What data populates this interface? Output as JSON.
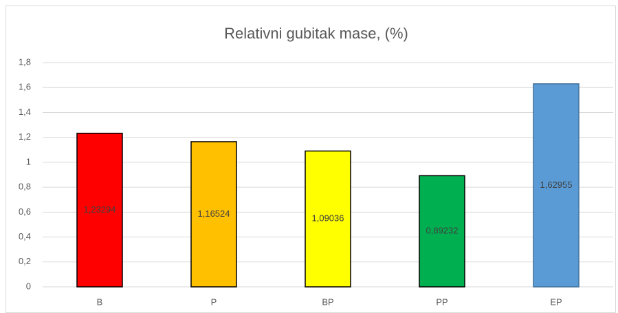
{
  "chart_data": {
    "type": "bar",
    "title": "Relativni gubitak mase, (%)",
    "categories": [
      "B",
      "P",
      "BP",
      "PP",
      "EP"
    ],
    "values": [
      1.23294,
      1.16524,
      1.09036,
      0.89232,
      1.62955
    ],
    "value_labels": [
      "1,23294",
      "1,16524",
      "1,09036",
      "0,89232",
      "1,62955"
    ],
    "colors": [
      "#ff0000",
      "#ffc000",
      "#ffff00",
      "#00b050",
      "#5b9bd5"
    ],
    "edgecolors": [
      "#000000",
      "#000000",
      "#000000",
      "#000000",
      "#41719c"
    ],
    "ylim": [
      0,
      1.8
    ],
    "yticks": [
      0,
      {
        "value": 0.2,
        "label": "0,2"
      },
      {
        "value": 0.4,
        "label": "0,4"
      },
      {
        "value": 0.6,
        "label": "0,6"
      },
      {
        "value": 0.8,
        "label": "0,8"
      },
      1,
      {
        "value": 1.2,
        "label": "1,2"
      },
      {
        "value": 1.4,
        "label": "1,4"
      },
      {
        "value": 1.6,
        "label": "1,6"
      },
      {
        "value": 1.8,
        "label": "1,8"
      }
    ],
    "grid": true
  }
}
